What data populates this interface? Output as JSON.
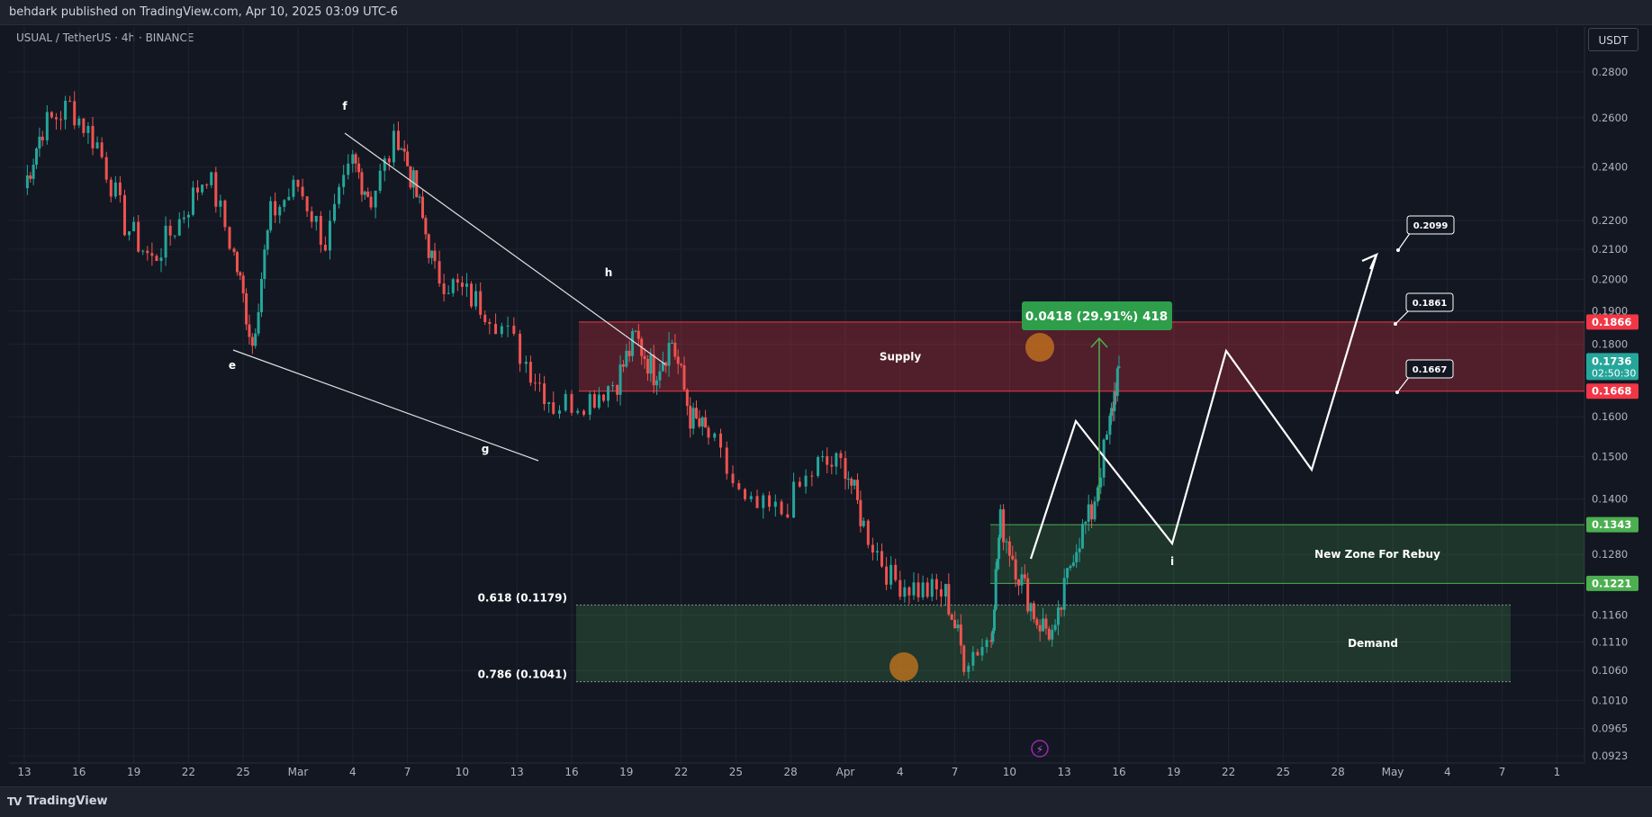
{
  "header": {
    "published": "behdark published on TradingView.com, Apr 10, 2025 03:09 UTC-6"
  },
  "symbol": "USUAL / TetherUS · 4h · BINANCE",
  "currency_button": "USDT",
  "brand": {
    "logo": "TV",
    "name": "TradingView"
  },
  "colors": {
    "background": "#131722",
    "up": "#26a69a",
    "down": "#ef5350",
    "supply": "#f23645",
    "demand": "#4caf50"
  },
  "chart_data": {
    "type": "candlestick",
    "scale": "log",
    "ylim": [
      0.0923,
      0.2933
    ],
    "x_ticks": [
      "13",
      "16",
      "19",
      "22",
      "25",
      "Mar",
      "4",
      "7",
      "10",
      "13",
      "16",
      "19",
      "22",
      "25",
      "28",
      "Apr",
      "4",
      "7",
      "10",
      "13",
      "16",
      "19",
      "22",
      "25",
      "28",
      "May",
      "4",
      "7",
      "1"
    ],
    "y_ticks": [
      "0.2800",
      "0.2600",
      "0.2400",
      "0.2200",
      "0.2100",
      "0.2000",
      "0.1900",
      "0.1800",
      "0.1600",
      "0.1500",
      "0.1400",
      "0.1280",
      "0.1160",
      "0.1110",
      "0.1060",
      "0.1010",
      "0.0965",
      "0.0923"
    ],
    "price_tags": [
      {
        "label": "0.1866",
        "value": 0.1866,
        "color": "#f23645"
      },
      {
        "label": "0.1736",
        "value": 0.1736,
        "color": "#26a69a",
        "sub": "02:50:30"
      },
      {
        "label": "0.1668",
        "value": 0.1668,
        "color": "#f23645"
      },
      {
        "label": "0.1343",
        "value": 0.1343,
        "color": "#4caf50"
      },
      {
        "label": "0.1221",
        "value": 0.1221,
        "color": "#4caf50"
      }
    ],
    "zones": [
      {
        "label": "Supply",
        "top": 0.1866,
        "bottom": 0.1668
      },
      {
        "label": "New Zone For Rebuy",
        "top": 0.1343,
        "bottom": 0.1221
      },
      {
        "label": "Demand",
        "top": 0.1179,
        "bottom": 0.1041
      }
    ],
    "fib_levels": [
      {
        "label": "0.618 (0.1179)",
        "value": 0.1179
      },
      {
        "label": "0.786 (0.1041)",
        "value": 0.1041
      }
    ],
    "wave_labels": [
      "e",
      "f",
      "g",
      "h",
      "i"
    ],
    "targets": [
      "0.2099",
      "0.1861",
      "0.1667"
    ],
    "measure": "0.0418 (29.91%) 418",
    "series_anchors": [
      [
        0,
        0.232
      ],
      [
        2,
        0.256
      ],
      [
        5,
        0.265
      ],
      [
        8,
        0.249
      ],
      [
        11,
        0.219
      ],
      [
        14,
        0.206
      ],
      [
        17,
        0.22
      ],
      [
        20,
        0.238
      ],
      [
        23,
        0.208
      ],
      [
        25,
        0.18
      ],
      [
        27,
        0.222
      ],
      [
        30,
        0.233
      ],
      [
        33,
        0.212
      ],
      [
        36,
        0.242
      ],
      [
        38,
        0.228
      ],
      [
        41,
        0.253
      ],
      [
        43,
        0.229
      ],
      [
        45,
        0.202
      ],
      [
        48,
        0.196
      ],
      [
        51,
        0.19
      ],
      [
        55,
        0.175
      ],
      [
        58,
        0.163
      ],
      [
        62,
        0.165
      ],
      [
        65,
        0.17
      ],
      [
        67,
        0.182
      ],
      [
        69,
        0.172
      ],
      [
        71,
        0.181
      ],
      [
        73,
        0.16
      ],
      [
        75,
        0.155
      ],
      [
        79,
        0.138
      ],
      [
        83,
        0.137
      ],
      [
        87,
        0.148
      ],
      [
        90,
        0.148
      ],
      [
        92,
        0.134
      ],
      [
        95,
        0.123
      ],
      [
        98,
        0.121
      ],
      [
        101,
        0.12
      ],
      [
        103,
        0.108
      ],
      [
        106,
        0.112
      ],
      [
        107,
        0.135
      ],
      [
        109,
        0.124
      ],
      [
        111,
        0.115
      ],
      [
        113,
        0.112
      ],
      [
        115,
        0.129
      ],
      [
        117,
        0.137
      ],
      [
        119,
        0.158
      ],
      [
        120,
        0.174
      ]
    ]
  }
}
